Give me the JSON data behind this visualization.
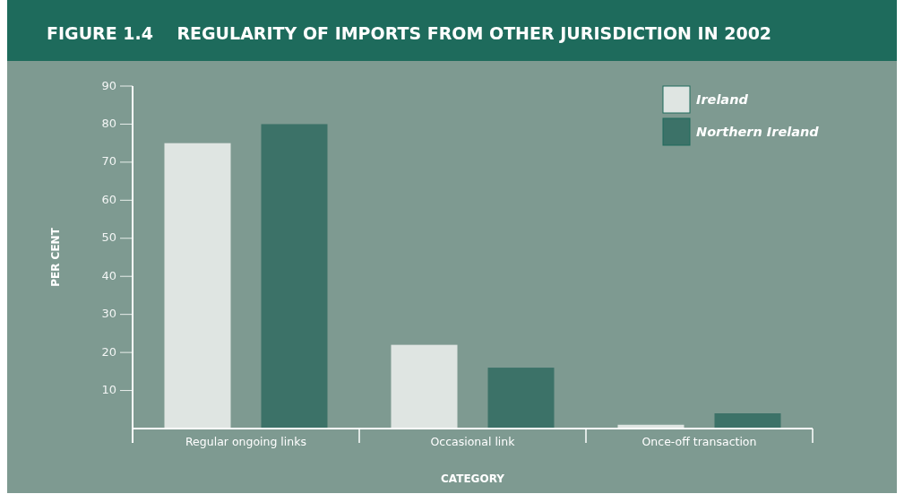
{
  "chart_data": {
    "type": "bar",
    "title": "FIGURE 1.4    REGULARITY OF IMPORTS FROM OTHER JURISDICTION IN 2002",
    "xlabel": "CATEGORY",
    "ylabel": "PER CENT",
    "categories": [
      "Regular ongoing links",
      "Occasional link",
      "Once-off transaction"
    ],
    "series": [
      {
        "name": "Ireland",
        "color": "#dfe5e2",
        "values": [
          75,
          22,
          1
        ]
      },
      {
        "name": "Northern Ireland",
        "color": "#3c7268",
        "values": [
          80,
          16,
          4
        ]
      }
    ],
    "ylim": [
      0,
      90
    ],
    "yticks": [
      10,
      20,
      30,
      40,
      50,
      60,
      70,
      80,
      90
    ],
    "legend": "top right"
  }
}
